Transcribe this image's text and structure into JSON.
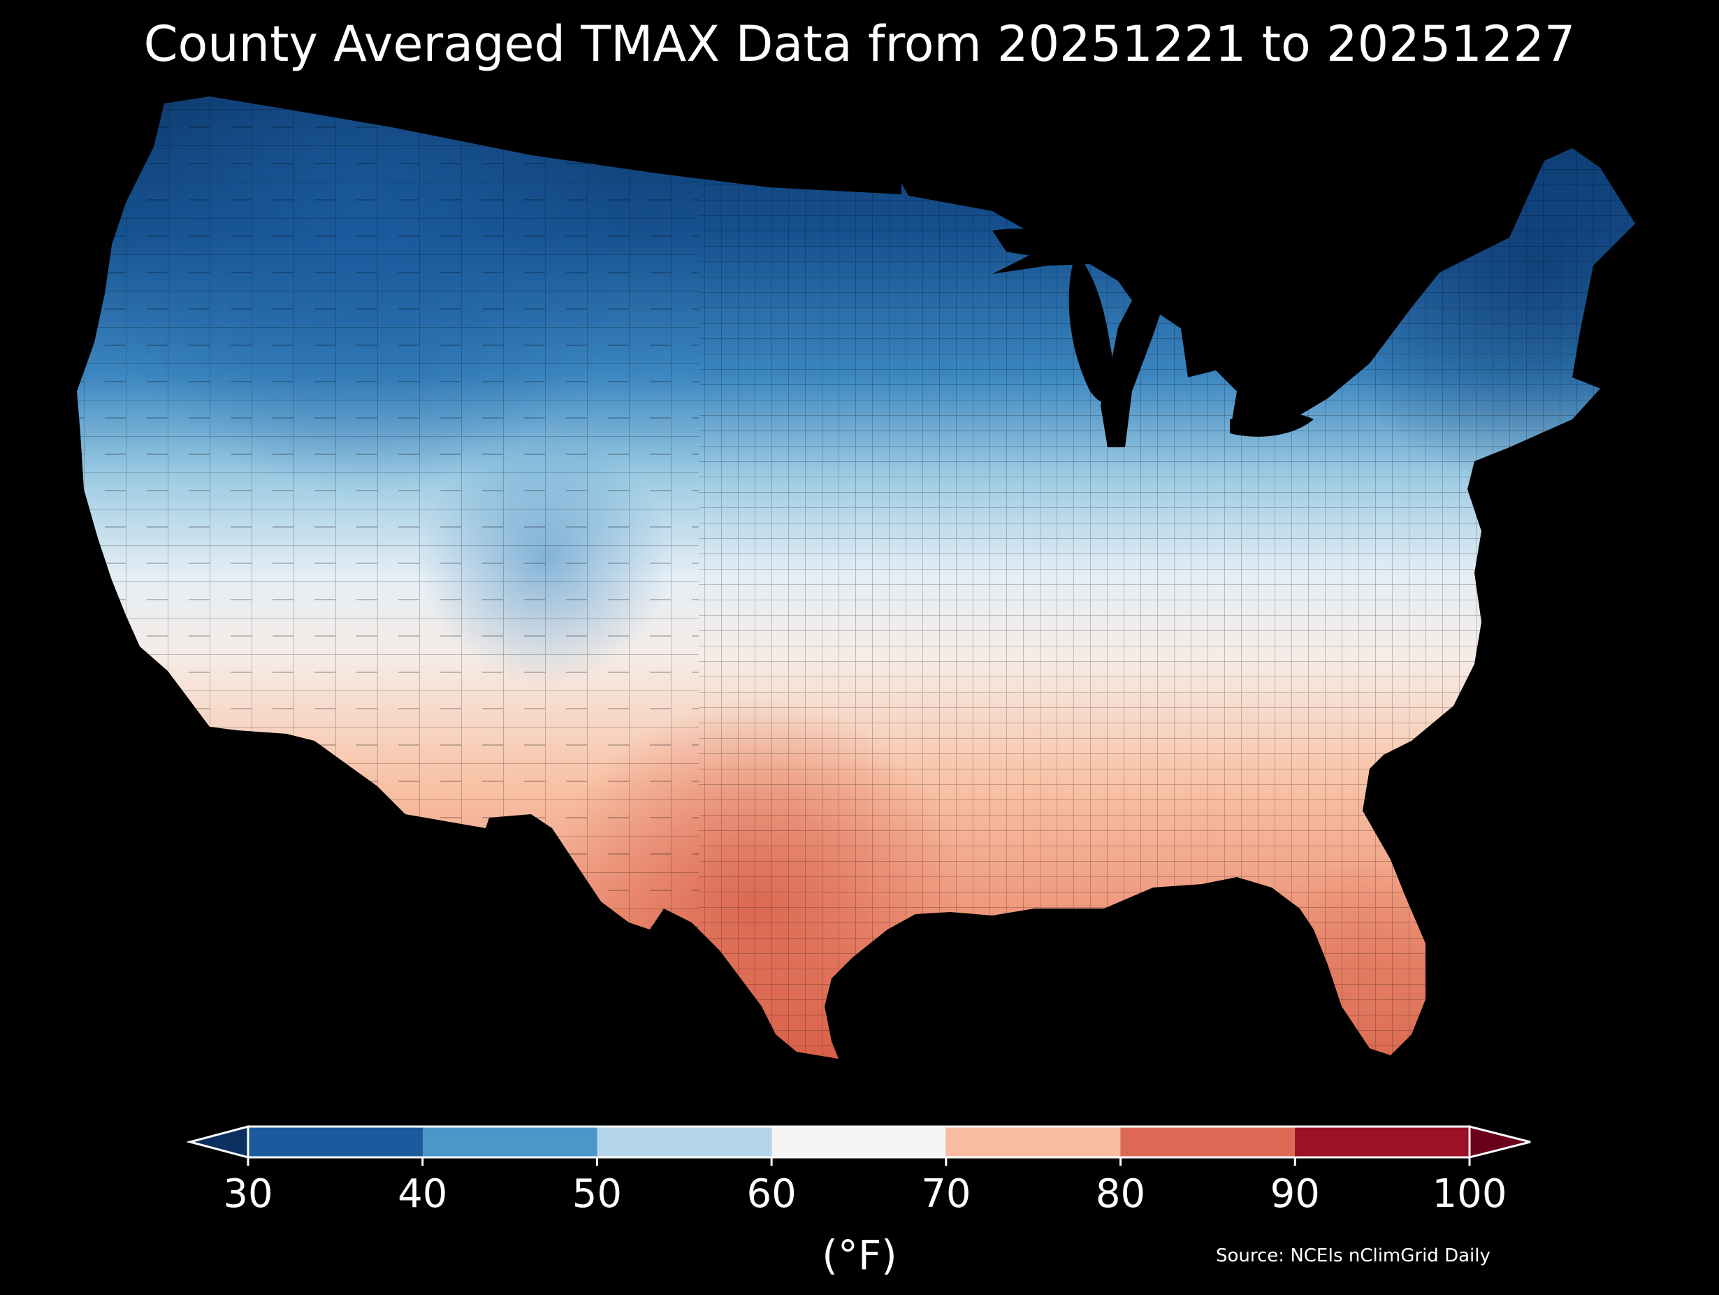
{
  "title": "County Averaged TMAX Data from 20251221 to 20251227",
  "source": "Source: NCEIs nClimGrid Daily",
  "colorbar": {
    "unit_label": "(°F)",
    "ticks": [
      "30",
      "40",
      "50",
      "60",
      "70",
      "80",
      "90",
      "100"
    ],
    "bins": [
      {
        "from": 30,
        "to": 40,
        "color": "#1b5a9c"
      },
      {
        "from": 40,
        "to": 50,
        "color": "#4a97c9"
      },
      {
        "from": 50,
        "to": 60,
        "color": "#b5d6ea"
      },
      {
        "from": 60,
        "to": 70,
        "color": "#f5f5f5"
      },
      {
        "from": 70,
        "to": 80,
        "color": "#f9bda1"
      },
      {
        "from": 80,
        "to": 90,
        "color": "#de6a55"
      },
      {
        "from": 90,
        "to": 100,
        "color": "#9b1127"
      }
    ],
    "under_color": "#0b2f5e",
    "over_color": "#6a0019"
  },
  "map": {
    "region": "Contiguous United States",
    "variable": "TMAX",
    "start_date": "20251221",
    "end_date": "20251227",
    "pattern": "Coldest (30-40°F) across the northern tier and Northeast; mild 60-70°F across the central Plains and Mid-Atlantic interior; warmest (80-90°F) in south Texas and south Florida"
  }
}
